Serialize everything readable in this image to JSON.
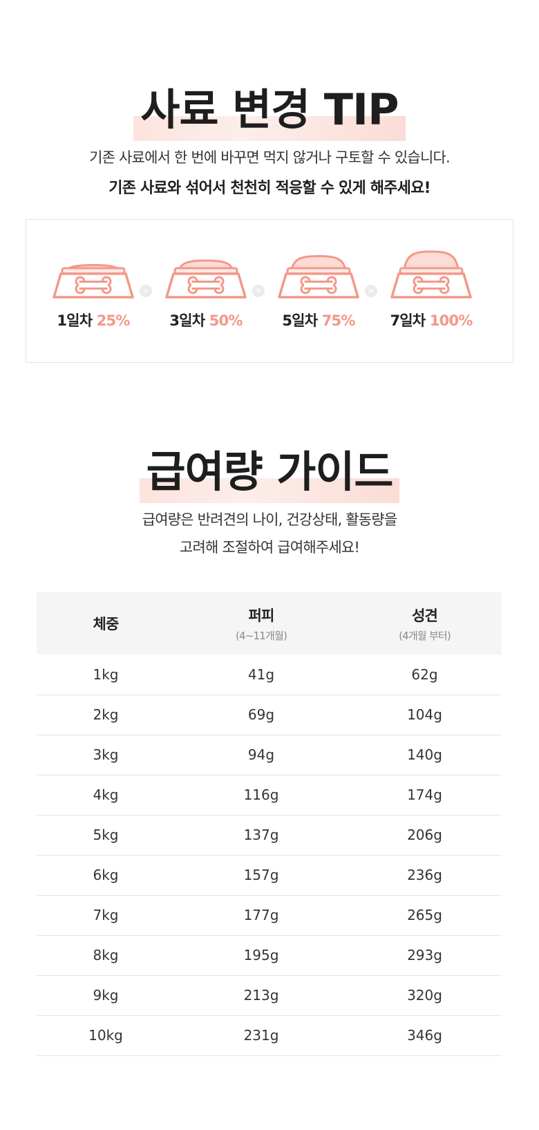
{
  "tip": {
    "title": "사료 변경 TIP",
    "desc_line1": "기존 사료에서 한 번에 바꾸면 먹지 않거나 구토할 수 있습니다.",
    "desc_line2": "기존 사료와 섞어서 천천히 적응할 수 있게 해주세요!",
    "steps": [
      {
        "day": "1일차",
        "percent": "25%",
        "fill": 0.25
      },
      {
        "day": "3일차",
        "percent": "50%",
        "fill": 0.5
      },
      {
        "day": "5일차",
        "percent": "75%",
        "fill": 0.75
      },
      {
        "day": "7일차",
        "percent": "100%",
        "fill": 1.0
      }
    ],
    "arrow_glyph": ">",
    "icon": "food-bowl-bone-icon",
    "accent_color": "#f2988a"
  },
  "guide": {
    "title": "급여량 가이드",
    "desc_line1": "급여량은 반려견의 나이, 건강상태, 활동량을",
    "desc_line2": "고려해 조절하여 급여해주세요!",
    "table": {
      "headers": [
        {
          "label": "체중",
          "sub": ""
        },
        {
          "label": "퍼피",
          "sub": "(4~11개월)"
        },
        {
          "label": "성견",
          "sub": "(4개월 부터)"
        }
      ],
      "rows": [
        [
          "1kg",
          "41g",
          "62g"
        ],
        [
          "2kg",
          "69g",
          "104g"
        ],
        [
          "3kg",
          "94g",
          "140g"
        ],
        [
          "4kg",
          "116g",
          "174g"
        ],
        [
          "5kg",
          "137g",
          "206g"
        ],
        [
          "6kg",
          "157g",
          "236g"
        ],
        [
          "7kg",
          "177g",
          "265g"
        ],
        [
          "8kg",
          "195g",
          "293g"
        ],
        [
          "9kg",
          "213g",
          "320g"
        ],
        [
          "10kg",
          "231g",
          "346g"
        ]
      ]
    }
  }
}
